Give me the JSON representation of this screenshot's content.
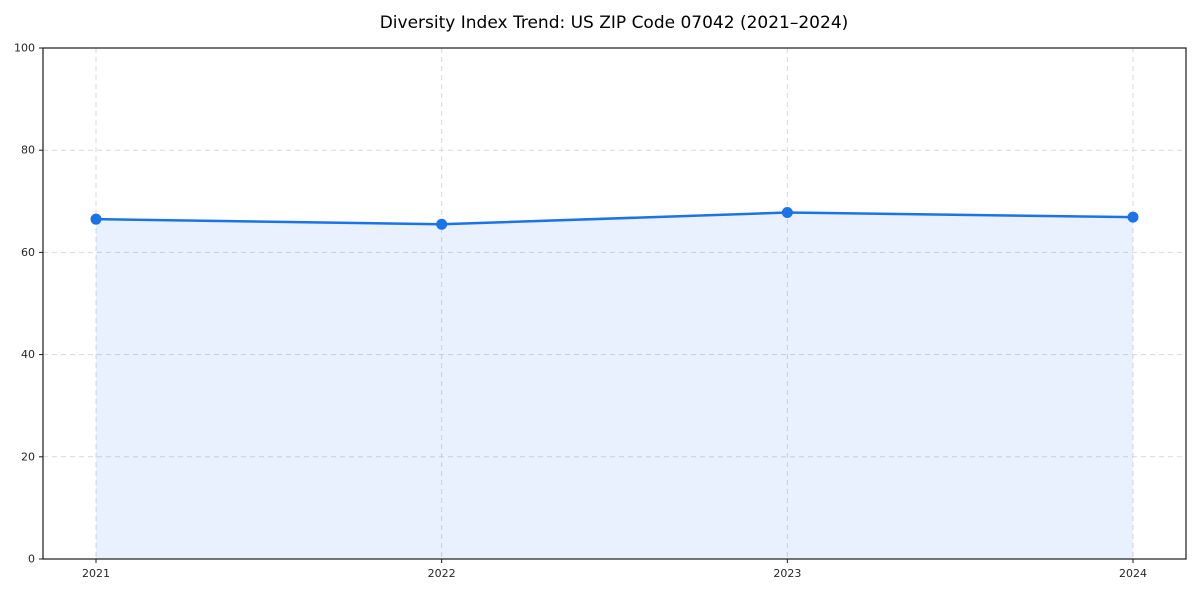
{
  "page": {
    "background": "#ffffff"
  },
  "chart_data": {
    "type": "area",
    "title": "Diversity Index Trend: US ZIP Code 07042 (2021–2024)",
    "x": [
      "2021",
      "2022",
      "2023",
      "2024"
    ],
    "series": [
      {
        "name": "Diversity Index",
        "values": [
          66.5,
          65.5,
          67.8,
          66.9
        ]
      }
    ],
    "xlabel": "",
    "ylabel": "",
    "ylim": [
      0,
      100
    ],
    "yticks": [
      0,
      20,
      40,
      60,
      80,
      100
    ],
    "grid": true,
    "grid_style": "dashed",
    "legend": false,
    "marker": "circle",
    "colors": {
      "line": "#1a73e8",
      "marker": "#1a73e8",
      "fill": "rgba(26,115,232,0.10)",
      "grid": "#d9d9d9",
      "spine": "#1a1a1a",
      "tick_label": "#262626",
      "title": "#000000"
    }
  }
}
